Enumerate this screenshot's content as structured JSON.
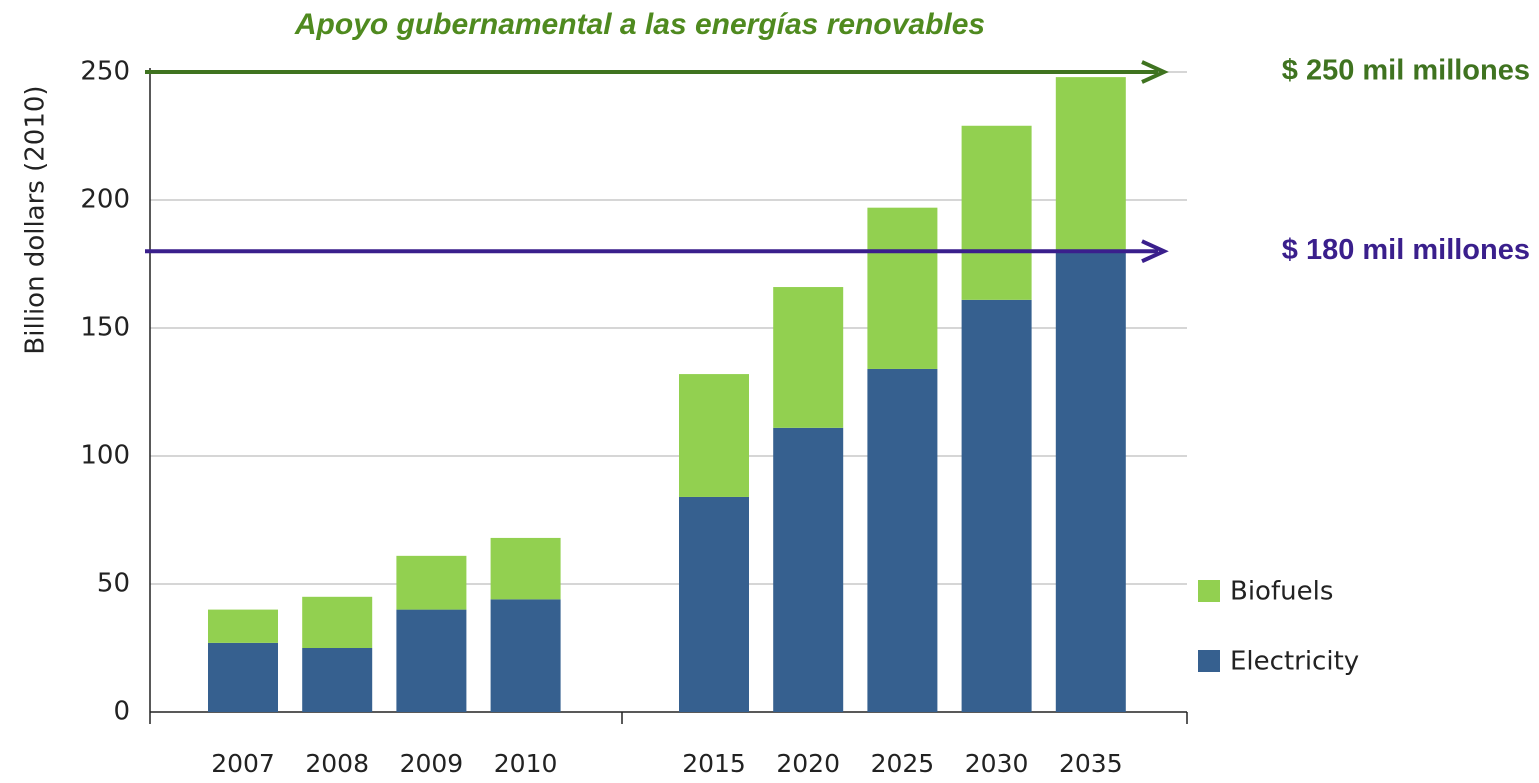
{
  "chart_data": {
    "type": "bar",
    "stacked": true,
    "title": "Apoyo gubernamental a las energías renovables",
    "y_label": "Billion dollars (2010)",
    "categories": [
      "2007",
      "2008",
      "2009",
      "2010",
      "2015",
      "2020",
      "2025",
      "2030",
      "2035"
    ],
    "series": [
      {
        "name": "Electricity",
        "color": "#36608f",
        "values": [
          27,
          25,
          40,
          44,
          84,
          111,
          134,
          161,
          180
        ]
      },
      {
        "name": "Biofuels",
        "color": "#92d050",
        "values": [
          13,
          20,
          21,
          24,
          48,
          55,
          63,
          68,
          68
        ]
      }
    ],
    "ylim": [
      0,
      250
    ],
    "yticks": [
      0,
      50,
      100,
      150,
      200,
      250
    ],
    "grid": true,
    "annotations": [
      {
        "text": "$ 250 mil millones",
        "value": 250,
        "color": "#3f7320"
      },
      {
        "text": "$ 180 mil millones",
        "value": 180,
        "color": "#3a1f8c"
      }
    ]
  }
}
